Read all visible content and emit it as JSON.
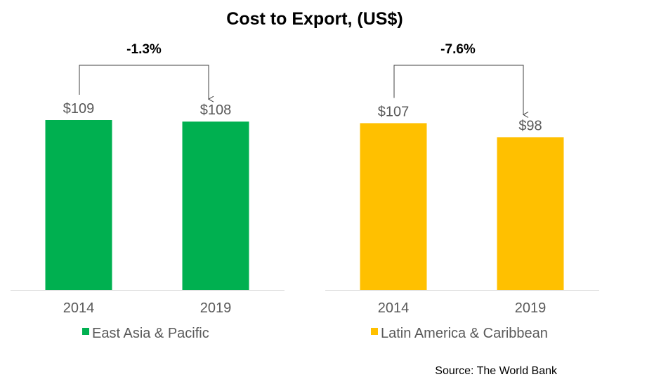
{
  "title": "Cost to Export, (US$)",
  "source": "Source: The World Bank",
  "chart_data": [
    {
      "type": "bar",
      "categories": [
        "2014",
        "2019"
      ],
      "series": [
        {
          "name": "East Asia & Pacific",
          "values": [
            109,
            108
          ]
        }
      ],
      "data_labels": [
        "$109",
        "$108"
      ],
      "change_label": "-1.3%",
      "color": "#00B050",
      "ylim": [
        0,
        109
      ]
    },
    {
      "type": "bar",
      "categories": [
        "2014",
        "2019"
      ],
      "series": [
        {
          "name": "Latin America & Caribbean",
          "values": [
            107,
            98
          ]
        }
      ],
      "data_labels": [
        "$107",
        "$98"
      ],
      "change_label": "-7.6%",
      "color": "#FFC000",
      "ylim": [
        0,
        109
      ]
    }
  ]
}
